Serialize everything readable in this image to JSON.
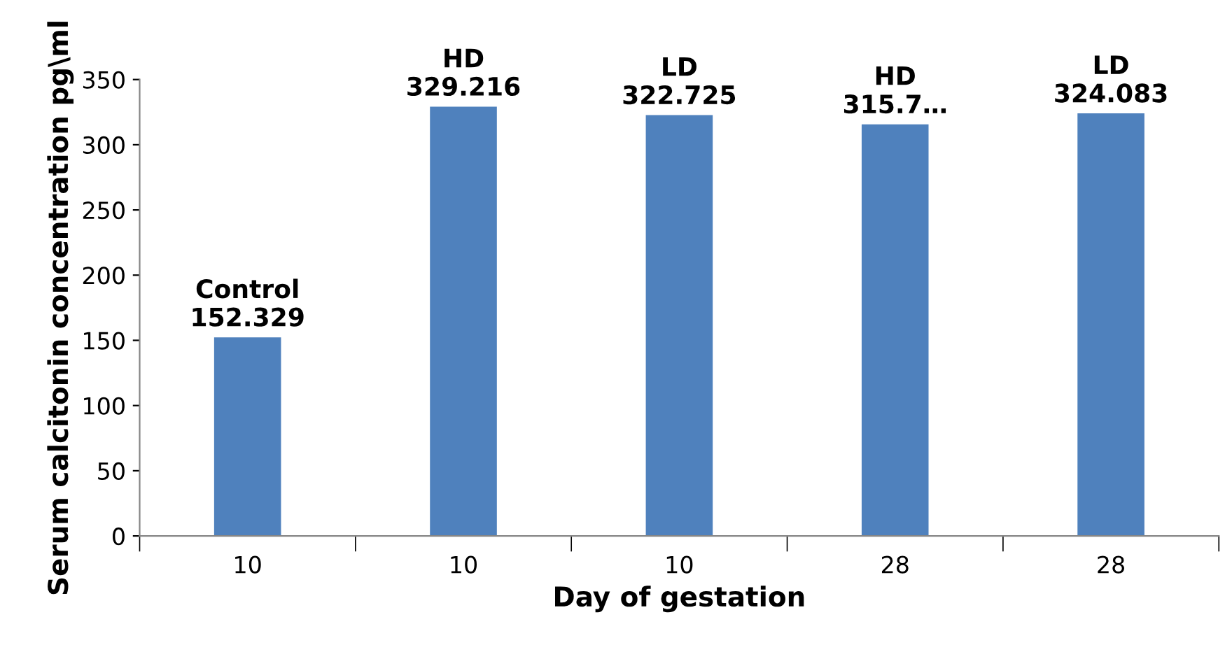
{
  "chart_data": {
    "type": "bar",
    "xlabel": "Day of gestation",
    "ylabel": "Serum calcitonin concentration pg\\ml",
    "categories": [
      "10",
      "10",
      "10",
      "28",
      "28"
    ],
    "values": [
      152.329,
      329.216,
      322.725,
      315.7,
      324.083
    ],
    "value_labels": [
      "Control\n152.329",
      "HD\n329.216",
      "LD\n322.725",
      "HD\n315.7…",
      "LD\n324.083"
    ],
    "color": "#4f81bd",
    "ylim": [
      0,
      350
    ],
    "yticks": [
      0,
      50,
      100,
      150,
      200,
      250,
      300,
      350
    ],
    "grid": false,
    "legend": false
  }
}
